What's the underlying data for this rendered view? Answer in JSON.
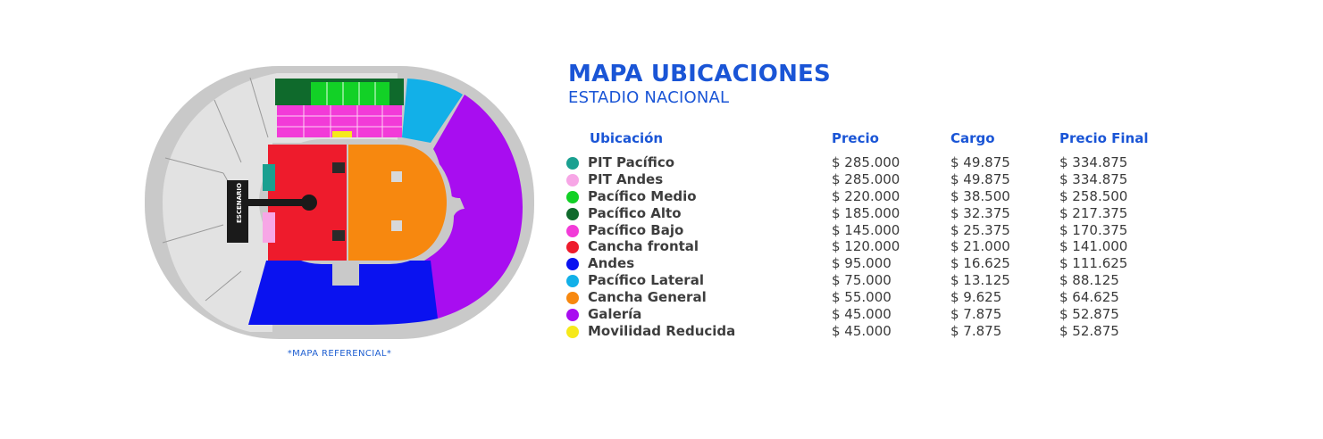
{
  "header": {
    "title": "MAPA UBICACIONES",
    "subtitle": "ESTADIO NACIONAL"
  },
  "map": {
    "stage_label": "ESCENARIO",
    "note": "*MAPA REFERENCIAL*"
  },
  "table": {
    "headers": {
      "location": "Ubicación",
      "price": "Precio",
      "charge": "Cargo",
      "final": "Precio Final"
    },
    "rows": [
      {
        "name": "PIT Pacífico",
        "color": "#1aa090",
        "price": "$ 285.000",
        "charge": "$ 49.875",
        "final": "$ 334.875"
      },
      {
        "name": "PIT Andes",
        "color": "#f7a6e6",
        "price": "$ 285.000",
        "charge": "$ 49.875",
        "final": "$ 334.875"
      },
      {
        "name": "Pacífico Medio",
        "color": "#12d126",
        "price": "$ 220.000",
        "charge": "$ 38.500",
        "final": "$ 258.500"
      },
      {
        "name": "Pacífico Alto",
        "color": "#0f6a2c",
        "price": "$ 185.000",
        "charge": "$ 32.375",
        "final": "$ 217.375"
      },
      {
        "name": "Pacífico Bajo",
        "color": "#f23bd8",
        "price": "$ 145.000",
        "charge": "$ 25.375",
        "final": "$ 170.375"
      },
      {
        "name": "Cancha frontal",
        "color": "#ee1b2c",
        "price": "$ 120.000",
        "charge": "$ 21.000",
        "final": "$ 141.000"
      },
      {
        "name": "Andes",
        "color": "#0a12f0",
        "price": "$ 95.000",
        "charge": "$ 16.625",
        "final": "$ 111.625"
      },
      {
        "name": "Pacífico Lateral",
        "color": "#12b0e8",
        "price": "$ 75.000",
        "charge": "$ 13.125",
        "final": "$ 88.125"
      },
      {
        "name": "Cancha General",
        "color": "#f7880f",
        "price": "$ 55.000",
        "charge": "$ 9.625",
        "final": "$ 64.625"
      },
      {
        "name": "Galería",
        "color": "#a80df0",
        "price": "$ 45.000",
        "charge": "$ 7.875",
        "final": "$ 52.875"
      },
      {
        "name": "Movilidad Reducida",
        "color": "#f6e91a",
        "price": "$ 45.000",
        "charge": "$ 7.875",
        "final": "$ 52.875"
      }
    ]
  }
}
